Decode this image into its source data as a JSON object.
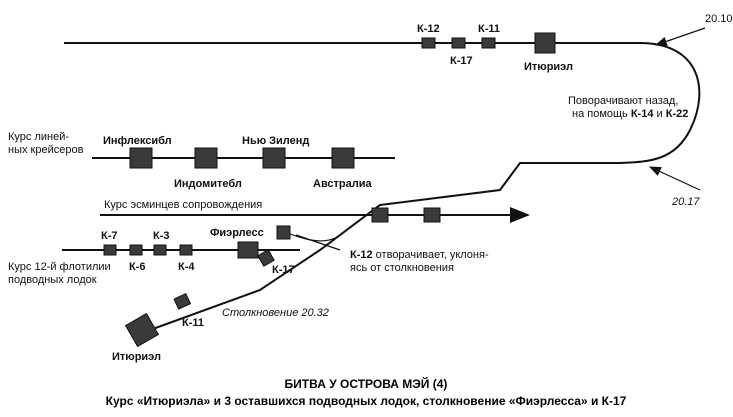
{
  "times": {
    "t1": "20.10",
    "t2": "20.17",
    "collision": "Столкновение 20.32"
  },
  "courses": {
    "cruisers_l1": "Курс линей-",
    "cruisers_l2": "ных крейсеров",
    "destroyers": "Курс эсминцев сопровождения",
    "flotilla_l1": "Курс 12-й флотилии",
    "flotilla_l2": "подводных лодок"
  },
  "ships": {
    "k12": "К-12",
    "k17_top": "К-17",
    "k11_top": "К-11",
    "ithuriel_top": "Итюриэл",
    "inflexible": "Инфлексибл",
    "indomitable": "Индомитебл",
    "new_zealand": "Нью Зиленд",
    "australia": "Австралиа",
    "fearless": "Фиэрлесс",
    "k7": "К-7",
    "k6": "К-6",
    "k3": "К-3",
    "k4": "К-4",
    "k17_bottom": "К-17",
    "k11_bottom": "К-11",
    "ithuriel_bottom": "Итюриэл"
  },
  "notes": {
    "turn_l1": "Поворачивают назад,",
    "turn_l2_a": "на помощь ",
    "turn_l2_b": "К-14",
    "turn_l2_c": " и ",
    "turn_l2_d": "К-22",
    "k12_l1_a": "К-12",
    "k12_l1_b": " отворачивает, уклоня-",
    "k12_l2": "ясь от столкновения"
  },
  "caption": {
    "title": "БИТВА У ОСТРОВА МЭЙ (4)",
    "subtitle": "Курс «Итюриэла» и 3 оставшихся подводных лодок, столкновение «Фиэрлесса» и К-17"
  }
}
